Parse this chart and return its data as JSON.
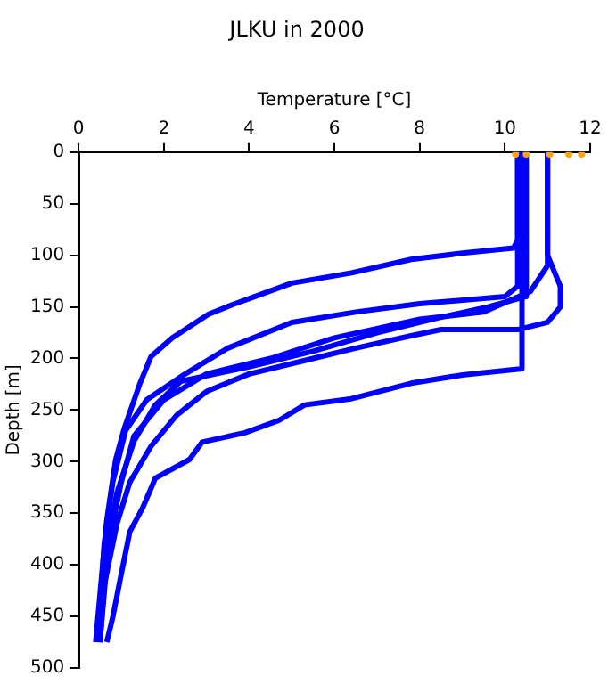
{
  "chart_data": {
    "type": "line",
    "title": "JLKU in 2000",
    "xlabel": "Temperature [°C]",
    "ylabel": "Depth [m]",
    "xlim": [
      0,
      12
    ],
    "xticks": [
      0,
      2,
      4,
      6,
      8,
      10,
      12
    ],
    "ylim": [
      500,
      0
    ],
    "yticks": [
      0,
      50,
      100,
      150,
      200,
      250,
      300,
      350,
      400,
      450,
      500
    ],
    "grid": false,
    "legend": false,
    "marker": "none",
    "line_style": "solid",
    "series": [
      {
        "color": "#0000ff",
        "x": [
          10.3,
          10.3,
          10.2,
          9.0,
          7.8,
          6.4,
          5.0,
          4.4,
          3.6,
          3.05,
          2.2,
          1.7,
          1.44,
          1.07,
          0.87,
          0.66,
          0.4
        ],
        "values": [
          0,
          85,
          93,
          98,
          104,
          117,
          127,
          136,
          148,
          157,
          180,
          198,
          224,
          268,
          298,
          357,
          475
        ]
      },
      {
        "color": "#0000ff",
        "x": [
          10.4,
          10.4,
          9.0,
          7.8,
          6.4,
          5.3,
          4.7,
          3.9,
          2.9,
          2.6,
          1.8,
          1.5,
          1.2,
          1.0,
          0.8,
          0.66
        ],
        "values": [
          0,
          210,
          216,
          224,
          239,
          245,
          260,
          272,
          281,
          298,
          316,
          345,
          368,
          409,
          451,
          475
        ]
      },
      {
        "color": "#0000ff",
        "x": [
          11.0,
          11.0,
          11.3,
          11.3,
          11.0,
          10.3,
          8.5,
          7.8,
          6.5,
          5.5,
          4.0,
          3.0,
          2.3,
          1.7,
          1.2,
          0.9,
          0.6,
          0.5
        ],
        "values": [
          0,
          100,
          130,
          150,
          165,
          172,
          172,
          178,
          190,
          200,
          215,
          232,
          255,
          285,
          320,
          360,
          420,
          475
        ]
      },
      {
        "color": "#0000ff",
        "x": [
          10.3,
          10.3,
          10.0,
          8.0,
          6.5,
          5.0,
          3.5,
          2.5,
          1.6,
          1.1,
          0.8,
          0.6,
          0.45
        ],
        "values": [
          0,
          130,
          140,
          147,
          155,
          165,
          190,
          215,
          240,
          270,
          320,
          380,
          475
        ]
      },
      {
        "color": "#0000ff",
        "x": [
          11.0,
          11.0,
          10.6,
          9.5,
          8.0,
          6.0,
          4.5,
          3.0,
          2.0,
          1.3,
          1.0,
          0.7,
          0.5
        ],
        "values": [
          0,
          110,
          135,
          155,
          162,
          180,
          200,
          215,
          240,
          275,
          320,
          380,
          475
        ]
      },
      {
        "color": "#0000ff",
        "x": [
          10.5,
          10.5,
          9.6,
          8.5,
          7.0,
          5.5,
          4.0,
          2.4,
          1.8,
          1.3,
          0.9,
          0.6,
          0.5
        ],
        "values": [
          0,
          140,
          150,
          160,
          175,
          193,
          208,
          222,
          245,
          280,
          330,
          400,
          475
        ]
      },
      {
        "type": "scatter",
        "marker": "circle",
        "color": "#ffa500",
        "x": [
          10.25,
          10.5,
          11.05,
          11.5,
          11.8
        ],
        "values": [
          2,
          2,
          2,
          2,
          2
        ]
      }
    ]
  }
}
